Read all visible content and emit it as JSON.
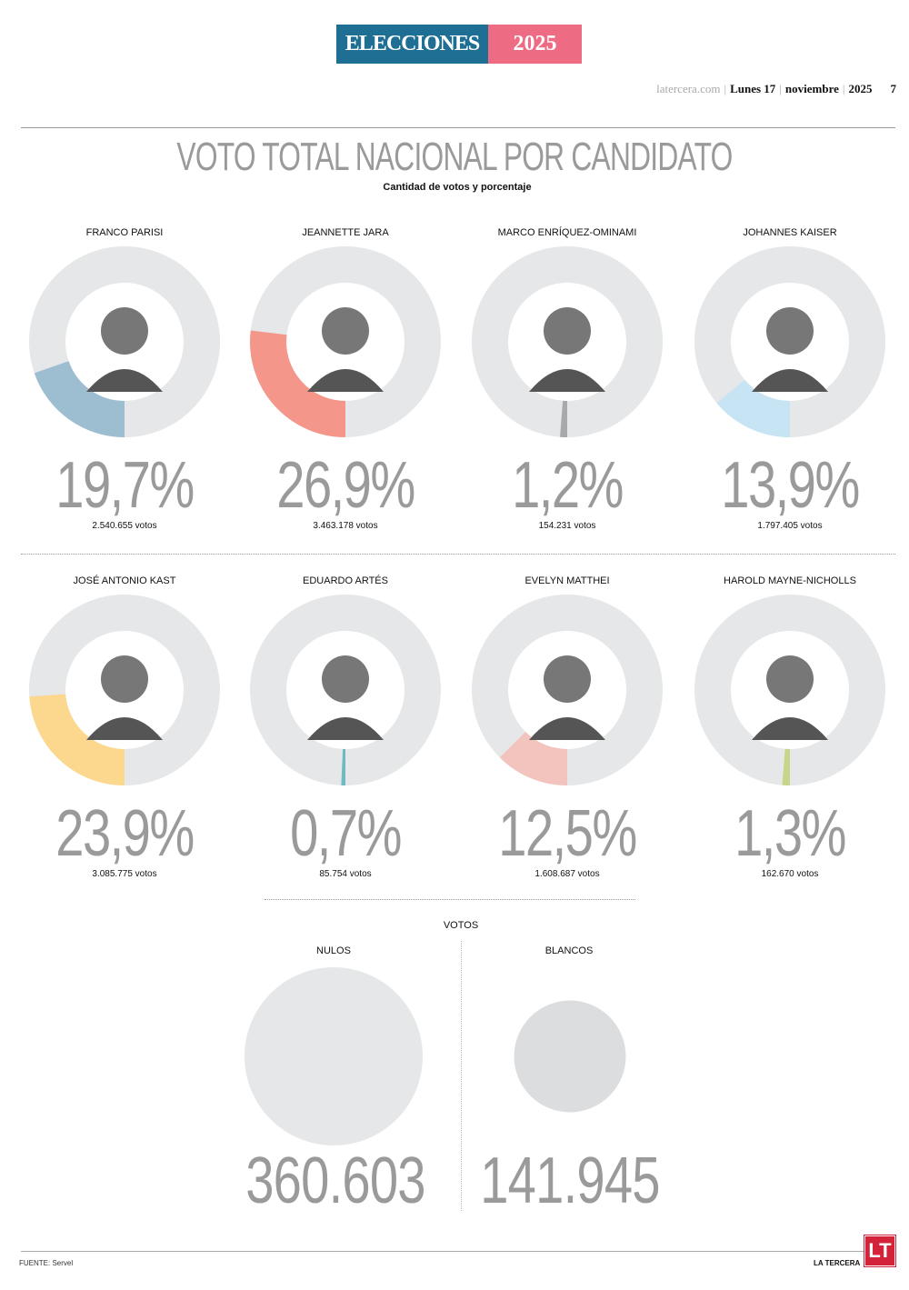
{
  "header": {
    "banner_left": "ELECCIONES",
    "banner_right": "2025",
    "banner_colors": [
      "#1e6f93",
      "#ee6b84"
    ],
    "site": "latercera.com",
    "day": "Lunes 17",
    "month": "noviembre",
    "year": "2025",
    "page": "7"
  },
  "chart_data": {
    "type": "donut",
    "title": "VOTO TOTAL NACIONAL POR CANDIDATO",
    "subtitle": "Cantidad de votos y porcentaje",
    "candidates": [
      {
        "name": "FRANCO PARISI",
        "pct": 19.7,
        "pct_label": "19,7%",
        "votes_label": "2.540.655 votos",
        "color": "#9dbdd0"
      },
      {
        "name": "JEANNETTE JARA",
        "pct": 26.9,
        "pct_label": "26,9%",
        "votes_label": "3.463.178 votos",
        "color": "#f4978a"
      },
      {
        "name": "MARCO ENRÍQUEZ-OMINAMI",
        "pct": 1.2,
        "pct_label": "1,2%",
        "votes_label": "154.231 votos",
        "color": "#a9a9ab"
      },
      {
        "name": "JOHANNES KAISER",
        "pct": 13.9,
        "pct_label": "13,9%",
        "votes_label": "1.797.405 votos",
        "color": "#c6e4f3"
      },
      {
        "name": "JOSÉ ANTONIO KAST",
        "pct": 23.9,
        "pct_label": "23,9%",
        "votes_label": "3.085.775 votos",
        "color": "#fcd88f"
      },
      {
        "name": "EDUARDO ARTÉS",
        "pct": 0.7,
        "pct_label": "0,7%",
        "votes_label": "85.754 votos",
        "color": "#6fb9c0"
      },
      {
        "name": "EVELYN MATTHEI",
        "pct": 12.5,
        "pct_label": "12,5%",
        "votes_label": "1.608.687 votos",
        "color": "#f2c4bd"
      },
      {
        "name": "HAROLD MAYNE-NICHOLLS",
        "pct": 1.3,
        "pct_label": "1,3%",
        "votes_label": "162.670 votos",
        "color": "#c8d68b"
      }
    ],
    "ring_color": "#e6e7e8",
    "other_votes": {
      "title": "VOTOS",
      "items": [
        {
          "name": "NULOS",
          "value": 360603,
          "value_label": "360.603"
        },
        {
          "name": "BLANCOS",
          "value": 141945,
          "value_label": "141.945"
        }
      ]
    }
  },
  "footer": {
    "source": "FUENTE: Servel",
    "brand": "LA TERCERA",
    "logo": "LT"
  }
}
